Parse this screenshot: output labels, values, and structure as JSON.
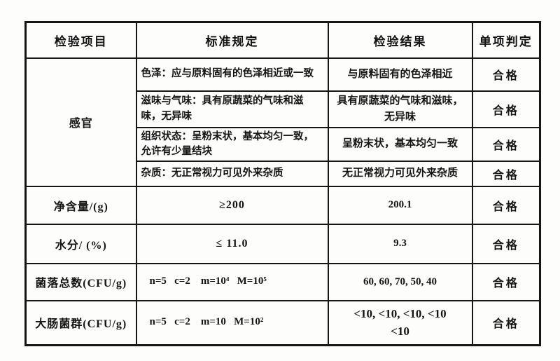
{
  "table": {
    "columns": [
      "检验项目",
      "标准规定",
      "检验结果",
      "单项判定"
    ],
    "rows": [
      {
        "item": "感官",
        "std": "色泽：应与原料固有的色泽相近或一致",
        "result": "与原料固有的色泽相近",
        "verdict": "合格"
      },
      {
        "std": "滋味与气味：具有原蔬菜的气味和滋\n味，无异味",
        "result": "具有原蔬菜的气味和滋味，\n无异味",
        "verdict": "合格"
      },
      {
        "std": "组织状态：呈粉末状，基本均匀一致，\n允许有少量结块",
        "result": "呈粉末状，基本均匀一致",
        "verdict": "合格"
      },
      {
        "std": "杂质：无正常视力可见外来杂质",
        "result": "无正常视力可见外来杂质",
        "verdict": "合格"
      },
      {
        "item": "净含量/(g)",
        "std": "≥200",
        "result": "200.1",
        "verdict": "合格"
      },
      {
        "item": "水分/ (%)",
        "std": "≤ 11.0",
        "result": "9.3",
        "verdict": "合格"
      },
      {
        "item": "菌落总数(CFU/g)",
        "std": "n=5   c=2    m=10⁴   M=10⁵",
        "result": "60, 60, 70, 50, 40",
        "verdict": "合格"
      },
      {
        "item": "大肠菌群(CFU/g)",
        "std": "n=5   c=2    m=10   M=10²",
        "result": "<10, <10, <10, <10\n<10",
        "verdict": "合格"
      }
    ]
  }
}
